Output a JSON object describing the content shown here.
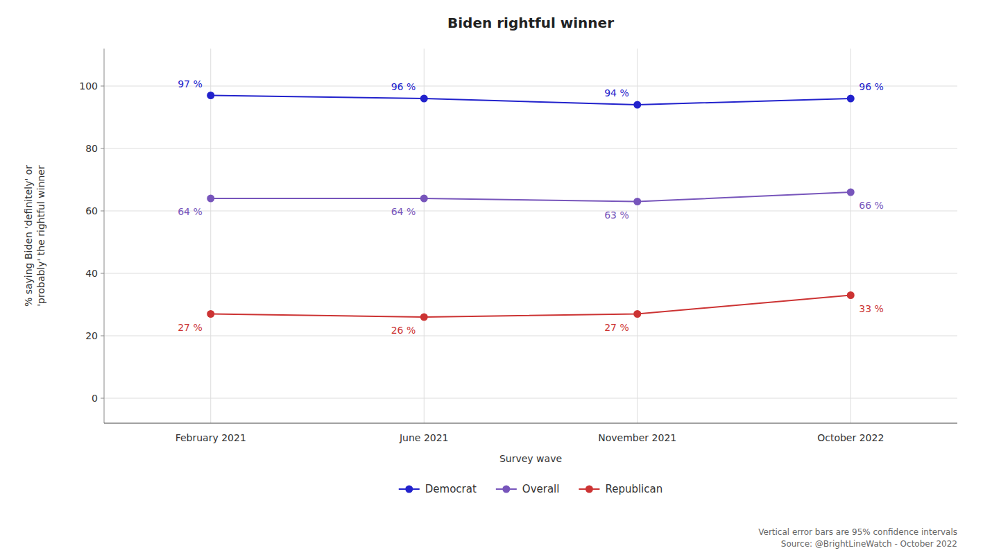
{
  "chart_data": {
    "type": "line",
    "title": "Biden rightful winner",
    "x_label": "Survey wave",
    "y_label": "% saying Biden 'definitely' or\n'probably' the rightful winner",
    "categories": [
      "February 2021",
      "June 2021",
      "November 2021",
      "October 2022"
    ],
    "series": [
      {
        "name": "Democrat",
        "color": "#2222cc",
        "marker": "circle",
        "values": [
          97,
          96,
          94,
          96
        ],
        "value_labels": [
          "97 %",
          "96 %",
          "94 %",
          "96 %"
        ]
      },
      {
        "name": "Overall",
        "color": "#7755bb",
        "marker": "circle",
        "values": [
          64,
          64,
          63,
          66
        ],
        "value_labels": [
          "64 %",
          "64 %",
          "63 %",
          "66 %"
        ]
      },
      {
        "name": "Republican",
        "color": "#cc3333",
        "marker": "circle",
        "values": [
          27,
          26,
          27,
          33
        ],
        "value_labels": [
          "27 %",
          "26 %",
          "27 %",
          "33 %"
        ]
      }
    ],
    "ylim": [
      -8,
      112
    ],
    "yticks": [
      0,
      20,
      40,
      60,
      80,
      100
    ],
    "grid": true,
    "legend": "bottom",
    "data_labels": true,
    "annotation": "Vertical error bars are 95% confidence intervals\nSource: @BrightLineWatch - October 2022"
  }
}
